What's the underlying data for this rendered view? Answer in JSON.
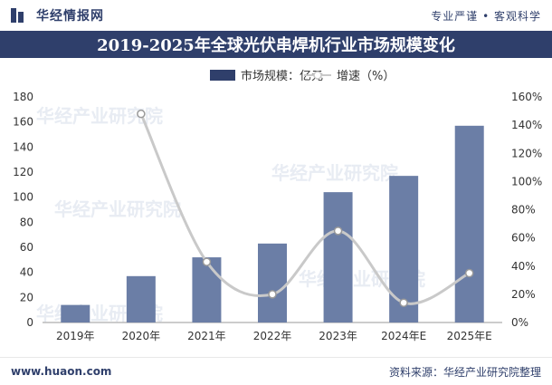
{
  "header": {
    "brand_name": "华经情报网",
    "slogan": "专业严谨 • 客观科学"
  },
  "footer": {
    "website": "www.huaon.com",
    "source": "资料来源：华经产业研究院整理"
  },
  "watermark": "华经产业研究院",
  "colors": {
    "navy": "#2f3f6b",
    "bar": "#6b7ea6",
    "line": "#c9c9c9"
  },
  "chart_data": {
    "type": "bar",
    "title": "2019-2025年全球光伏串焊机行业市场规模变化",
    "categories": [
      "2019年",
      "2020年",
      "2021年",
      "2022年",
      "2023年",
      "2024年E",
      "2025年E"
    ],
    "series": [
      {
        "name": "市场规模：亿元",
        "type": "bar",
        "axis": "left",
        "values": [
          14,
          37,
          52,
          63,
          104,
          117,
          157
        ]
      },
      {
        "name": "增速（%）",
        "type": "line",
        "axis": "right",
        "values": [
          null,
          148,
          43,
          20,
          65,
          14,
          35
        ]
      }
    ],
    "y_left": {
      "min": 0,
      "max": 180,
      "ticks": [
        "0",
        "20",
        "40",
        "60",
        "80",
        "100",
        "120",
        "140",
        "160",
        "180"
      ]
    },
    "y_right": {
      "min": 0,
      "max": 160,
      "ticks": [
        "0%",
        "20%",
        "40%",
        "60%",
        "80%",
        "100%",
        "120%",
        "140%",
        "160%"
      ]
    },
    "legend_position": "top-center"
  }
}
